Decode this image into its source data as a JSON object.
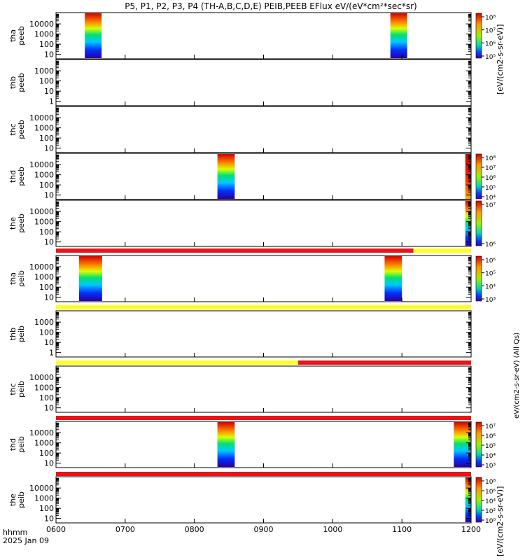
{
  "title": "P5, P1, P2, P3, P4 (TH-A,B,C,D,E) PEIB,PEEB EFlux eV/(eV*cm²*sec*sr)",
  "time_label": "hhmm",
  "date_label": "2025 Jan 09",
  "colorbar_unit_top": "[eV/(cm2-s-sr-eV)]",
  "colorbar_unit_bottom": "[eV/(cm2-s-sr-eV)]",
  "colorbar_unit_side": "eV/(cm2-s-sr-eV) (All Qs)",
  "colors": {
    "high": "#d40000",
    "low": "#3c00b4",
    "bar_red": "#e8141a",
    "bar_yellow": "#ffff22"
  },
  "chart_data": {
    "type": "heatmap",
    "x_ticks": [
      "0600",
      "0700",
      "0800",
      "0900",
      "1000",
      "1100",
      "1200"
    ],
    "x_range": [
      "0600",
      "1200"
    ],
    "panels": [
      {
        "probe": "tha",
        "species": "peeb",
        "ylabel": "tha\npeeb",
        "y_ticks": [
          "10000",
          "1000",
          "100",
          "10"
        ],
        "log": true,
        "colorbar": [
          "10⁸",
          "10⁷",
          "10⁶",
          "10⁵"
        ],
        "blocks": [
          [
            "0625",
            "0630"
          ],
          [
            "1050",
            "1055"
          ]
        ]
      },
      {
        "probe": "thb",
        "species": "peeb",
        "ylabel": "thb\npeeb",
        "y_ticks": [
          "1000",
          "100",
          "10",
          "1"
        ],
        "log": true,
        "colorbar": [],
        "blocks": []
      },
      {
        "probe": "thc",
        "species": "peeb",
        "ylabel": "thc\npeeb",
        "y_ticks": [
          "10000",
          "1000",
          "100",
          "10"
        ],
        "log": true,
        "colorbar": [],
        "blocks": []
      },
      {
        "probe": "thd",
        "species": "peeb",
        "ylabel": "thd\npeeb",
        "y_ticks": [
          "10000",
          "1000",
          "100",
          "10"
        ],
        "log": true,
        "colorbar": [
          "10⁸",
          "10⁷",
          "10⁶",
          "10⁵",
          "10⁴"
        ],
        "blocks": [
          [
            "0820",
            "0835"
          ],
          [
            "1155",
            "1200"
          ]
        ]
      },
      {
        "probe": "the",
        "species": "peeb",
        "ylabel": "the\npeeb",
        "y_ticks": [
          "10000",
          "1000",
          "100",
          "10"
        ],
        "log": true,
        "colorbar": [
          "10⁷",
          "10⁶"
        ],
        "blocks": [
          [
            "1155",
            "1200"
          ]
        ]
      },
      {
        "probe": "tha",
        "species": "peib",
        "ylabel": "tha\npeib",
        "y_ticks": [
          "10000",
          "1000",
          "100",
          "10"
        ],
        "log": true,
        "colorbar": [
          "10⁶",
          "10⁵",
          "10⁴",
          "10³"
        ],
        "blocks": [
          [
            "0620",
            "0640"
          ],
          [
            "1045",
            "1100"
          ]
        ]
      },
      {
        "probe": "thb",
        "species": "peib",
        "ylabel": "thb\npeib",
        "y_ticks": [
          "1000",
          "100",
          "10",
          "1"
        ],
        "log": true,
        "colorbar": [],
        "blocks": []
      },
      {
        "probe": "thc",
        "species": "peib",
        "ylabel": "thc\npeib",
        "y_ticks": [
          "10000",
          "1000",
          "100",
          "10"
        ],
        "log": true,
        "colorbar": [],
        "blocks": []
      },
      {
        "probe": "thd",
        "species": "peib",
        "ylabel": "thd\npeib",
        "y_ticks": [
          "10000",
          "1000",
          "100",
          "10"
        ],
        "log": true,
        "colorbar": [
          "10⁷",
          "10⁶",
          "10⁵",
          "10⁴",
          "10³"
        ],
        "blocks": [
          [
            "0820",
            "0835"
          ],
          [
            "1145",
            "1200"
          ]
        ]
      },
      {
        "probe": "the",
        "species": "peib",
        "ylabel": "the\npeib",
        "y_ticks": [
          "10000",
          "1000",
          "100",
          "10"
        ],
        "log": true,
        "colorbar": [
          "10⁸",
          "10⁶",
          "10⁴",
          "10²",
          "10⁰"
        ],
        "blocks": [
          [
            "1155",
            "1200"
          ]
        ]
      }
    ]
  }
}
